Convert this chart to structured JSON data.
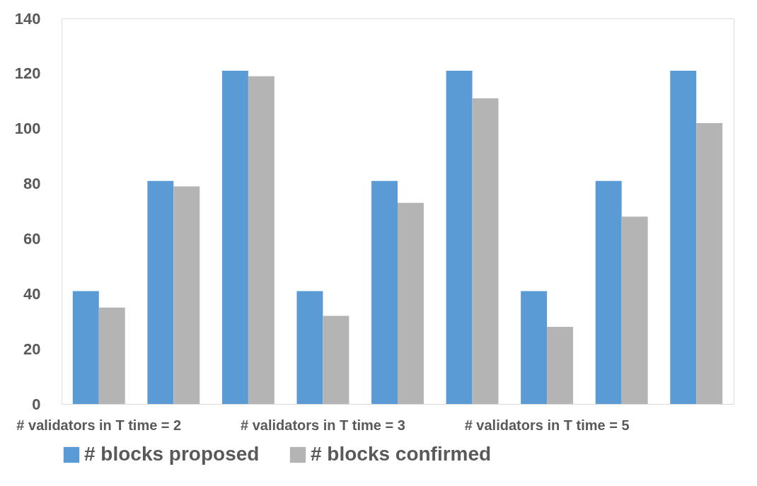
{
  "chart_data": {
    "type": "bar",
    "categories": [
      "# validators in T time = 2",
      null,
      null,
      "# validators in T time = 3",
      null,
      null,
      "# validators in T time = 5",
      null,
      null
    ],
    "series": [
      {
        "name": "# blocks proposed",
        "color": "#5b9bd5",
        "values": [
          41,
          81,
          121,
          41,
          81,
          121,
          41,
          81,
          121
        ]
      },
      {
        "name": "# blocks confirmed",
        "color": "#b4b4b4",
        "values": [
          35,
          79,
          119,
          32,
          73,
          111,
          28,
          68,
          102
        ]
      }
    ],
    "ylim": [
      0,
      140
    ],
    "yticks": [
      0,
      20,
      40,
      60,
      80,
      100,
      120,
      140
    ],
    "grid": false,
    "legend": "bottom"
  }
}
